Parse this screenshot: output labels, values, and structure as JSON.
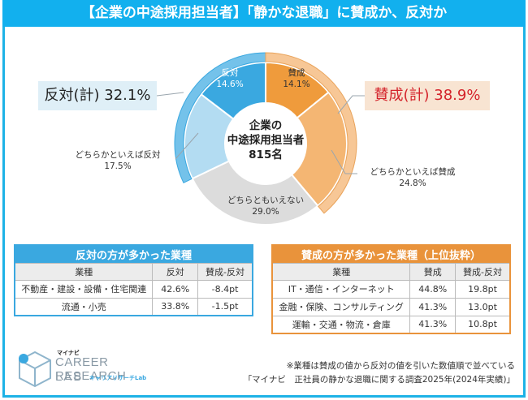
{
  "title": "【企業の中途採用担当者】「静かな退職」に賛成か、反対か",
  "chart_data": {
    "type": "pie",
    "variant": "donut",
    "center_label": [
      "企業の",
      "中途採用担当者",
      "815名"
    ],
    "slices": [
      {
        "label": "賛成",
        "value": 14.1,
        "display": "14.1%",
        "color": "#ef9b3c"
      },
      {
        "label": "どちらかといえば賛成",
        "value": 24.8,
        "display": "24.8%",
        "color": "#f4b673"
      },
      {
        "label": "どちらともいえない",
        "value": 29.0,
        "display": "29.0%",
        "color": "#dcdcdc"
      },
      {
        "label": "どちらかといえば反対",
        "value": 17.5,
        "display": "17.5%",
        "color": "#b3dcf2"
      },
      {
        "label": "反対",
        "value": 14.6,
        "display": "14.6%",
        "color": "#3aa8e0"
      }
    ],
    "groups": [
      {
        "label": "反対(計) 32.1%",
        "value": 32.1,
        "members": [
          "反対",
          "どちらかといえば反対"
        ],
        "color": "#74c2ea",
        "position": "left"
      },
      {
        "label": "賛成(計) 38.9%",
        "value": 38.9,
        "members": [
          "賛成",
          "どちらかといえば賛成"
        ],
        "color": "#f7c796",
        "position": "right"
      }
    ]
  },
  "tables": {
    "oppose": {
      "caption": "反対の方が多かった業種",
      "headers": [
        "業種",
        "反対",
        "賛成-反対"
      ],
      "rows": [
        [
          "不動産・建設・設備・住宅関連",
          "42.6%",
          "-8.4pt"
        ],
        [
          "流通・小売",
          "33.8%",
          "-1.5pt"
        ]
      ]
    },
    "support": {
      "caption": "賛成の方が多かった業種（上位抜粋）",
      "headers": [
        "業種",
        "賛成",
        "賛成-反対"
      ],
      "rows": [
        [
          "IT・通信・インターネット",
          "44.8%",
          "19.8pt"
        ],
        [
          "金融・保険、コンサルティング",
          "41.3%",
          "13.0pt"
        ],
        [
          "運輸・交通・物流・倉庫",
          "41.3%",
          "10.8pt"
        ]
      ]
    }
  },
  "logo": {
    "brand": "マイナビ",
    "line1": "CAREER RESEARCH",
    "line2": "LAB",
    "kana": "キャリアリサーチLab"
  },
  "footnote": {
    "line1": "※業種は賛成の値から反対の値を引いた数値順で並べている",
    "line2": "「マイナビ　正社員の静かな退職に関する調査2025年(2024年実績)」"
  }
}
